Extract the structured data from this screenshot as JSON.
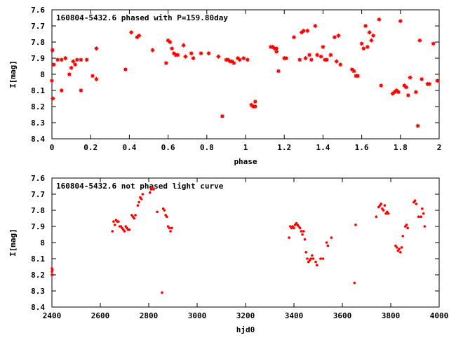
{
  "chart_data": [
    {
      "type": "scatter",
      "title": "160804-5432.6 phased with P=159.80day",
      "xlabel": "phase",
      "ylabel": "I[mag]",
      "xlim": [
        0,
        2
      ],
      "ylim": [
        7.6,
        8.4
      ],
      "y_inverted": true,
      "xticks": [
        "0",
        "0.2",
        "0.4",
        "0.6",
        "0.8",
        "1",
        "1.2",
        "1.4",
        "1.6",
        "1.8",
        "2"
      ],
      "yticks": [
        "7.6",
        "7.7",
        "7.8",
        "7.9",
        "8",
        "8.1",
        "8.2",
        "8.3",
        "8.4"
      ],
      "grid": false,
      "marker_color": "#ff0000",
      "marker": "star",
      "series": [
        {
          "x": [
            0.0,
            0.003,
            0.005,
            0.01,
            0.03,
            0.05,
            0.05,
            0.07,
            0.09,
            0.1,
            0.11,
            0.12,
            0.13,
            0.15,
            0.15,
            0.18,
            0.21,
            0.23,
            0.23,
            0.38,
            0.41,
            0.44,
            0.45,
            0.52,
            0.59,
            0.6,
            0.61,
            0.62,
            0.63,
            0.64,
            0.65,
            0.68,
            0.69,
            0.72,
            0.73,
            0.77,
            0.81,
            0.86,
            0.88,
            0.9,
            0.91,
            0.92,
            0.93,
            0.94,
            0.96,
            0.97,
            0.99,
            1.01,
            1.03,
            1.04,
            1.05,
            1.05,
            1.13,
            1.14,
            1.15,
            1.16,
            1.16,
            1.17,
            1.2,
            1.21,
            1.25,
            1.28,
            1.29,
            1.3,
            1.31,
            1.32,
            1.33,
            1.34,
            1.36,
            1.37,
            1.39,
            1.4,
            1.41,
            1.42,
            1.44,
            1.46,
            1.47,
            1.48,
            1.49,
            1.55,
            1.56,
            1.57,
            1.58,
            1.6,
            1.61,
            1.62,
            1.63,
            1.64,
            1.65,
            1.66,
            1.69,
            1.7,
            1.76,
            1.77,
            1.78,
            1.79,
            1.8,
            1.82,
            1.83,
            1.84,
            1.85,
            1.88,
            1.89,
            1.9,
            1.91,
            1.94,
            1.95,
            1.97,
            1.99
          ],
          "y": [
            8.04,
            7.85,
            8.15,
            7.94,
            7.91,
            7.91,
            8.1,
            7.9,
            8.0,
            7.96,
            7.92,
            7.94,
            7.91,
            7.91,
            8.1,
            7.91,
            8.01,
            8.03,
            7.84,
            7.97,
            7.74,
            7.77,
            7.76,
            7.85,
            7.93,
            7.79,
            7.8,
            7.84,
            7.87,
            7.88,
            7.88,
            7.82,
            7.89,
            7.87,
            7.9,
            7.87,
            7.87,
            7.89,
            8.26,
            7.91,
            7.91,
            7.92,
            7.92,
            7.93,
            7.9,
            7.91,
            7.9,
            7.91,
            8.19,
            8.2,
            8.17,
            8.2,
            7.83,
            7.83,
            7.84,
            7.86,
            7.84,
            7.98,
            7.9,
            7.9,
            7.77,
            7.91,
            7.74,
            7.73,
            7.9,
            7.73,
            7.88,
            7.91,
            7.7,
            7.88,
            7.89,
            7.83,
            7.91,
            7.91,
            7.88,
            7.77,
            7.92,
            7.76,
            7.94,
            7.97,
            7.98,
            8.01,
            8.01,
            7.81,
            7.84,
            7.7,
            7.83,
            7.74,
            7.79,
            7.76,
            7.66,
            8.07,
            8.12,
            8.11,
            8.1,
            8.11,
            7.67,
            8.07,
            8.08,
            8.13,
            8.02,
            8.11,
            8.32,
            7.79,
            8.03,
            8.06,
            8.06,
            7.81,
            8.04
          ]
        }
      ]
    },
    {
      "type": "scatter",
      "title": "160804-5432.6 not phased light curve",
      "xlabel": "hjd0",
      "ylabel": "I[mag]",
      "xlim": [
        2400,
        4000
      ],
      "ylim": [
        7.6,
        8.4
      ],
      "y_inverted": true,
      "xticks": [
        "2400",
        "2600",
        "2800",
        "3000",
        "3200",
        "3400",
        "3600",
        "3800",
        "4000"
      ],
      "yticks": [
        "7.6",
        "7.7",
        "7.8",
        "7.9",
        "8",
        "8.1",
        "8.2",
        "8.3",
        "8.4"
      ],
      "grid": false,
      "marker_color": "#ff0000",
      "marker": "dot",
      "series": [
        {
          "x": [
            2400,
            2400,
            2400,
            2402,
            2403,
            2650,
            2655,
            2660,
            2665,
            2670,
            2675,
            2680,
            2685,
            2690,
            2695,
            2700,
            2705,
            2710,
            2715,
            2720,
            2730,
            2735,
            2740,
            2745,
            2755,
            2760,
            2765,
            2770,
            2775,
            2805,
            2810,
            2815,
            2820,
            2835,
            2855,
            2860,
            2865,
            2870,
            2875,
            2880,
            2885,
            2890,
            2895,
            3380,
            3385,
            3390,
            3395,
            3400,
            3405,
            3410,
            3415,
            3420,
            3425,
            3430,
            3435,
            3440,
            3445,
            3450,
            3455,
            3460,
            3465,
            3470,
            3475,
            3480,
            3490,
            3495,
            3510,
            3520,
            3535,
            3540,
            3555,
            3650,
            3655,
            3740,
            3750,
            3755,
            3760,
            3765,
            3770,
            3775,
            3780,
            3785,
            3790,
            3820,
            3825,
            3830,
            3835,
            3840,
            3845,
            3850,
            3860,
            3865,
            3870,
            3895,
            3900,
            3905,
            3915,
            3925,
            3930,
            3935,
            3940
          ],
          "y": [
            8.16,
            8.18,
            8.2,
            8.17,
            8.2,
            7.93,
            7.87,
            7.89,
            7.86,
            7.87,
            7.87,
            7.9,
            7.9,
            7.91,
            7.92,
            7.93,
            7.9,
            7.91,
            7.92,
            7.92,
            7.83,
            7.84,
            7.85,
            7.83,
            7.77,
            7.75,
            7.72,
            7.73,
            7.7,
            7.69,
            7.67,
            7.66,
            7.67,
            7.81,
            8.31,
            7.79,
            7.8,
            7.83,
            7.84,
            7.9,
            7.91,
            7.93,
            7.91,
            7.97,
            7.9,
            7.91,
            7.9,
            7.91,
            7.89,
            7.88,
            7.89,
            7.9,
            7.91,
            7.93,
            7.95,
            7.93,
            7.98,
            8.06,
            8.1,
            8.12,
            8.11,
            8.1,
            8.08,
            8.1,
            8.12,
            8.14,
            8.1,
            8.1,
            8.0,
            8.02,
            7.97,
            8.25,
            7.89,
            7.84,
            7.78,
            7.77,
            7.76,
            7.79,
            7.8,
            7.77,
            7.82,
            7.81,
            7.82,
            8.02,
            8.03,
            8.05,
            8.04,
            8.06,
            8.03,
            7.96,
            7.9,
            7.89,
            7.91,
            7.75,
            7.74,
            7.76,
            7.84,
            7.84,
            7.79,
            7.82,
            7.9
          ]
        }
      ]
    }
  ]
}
